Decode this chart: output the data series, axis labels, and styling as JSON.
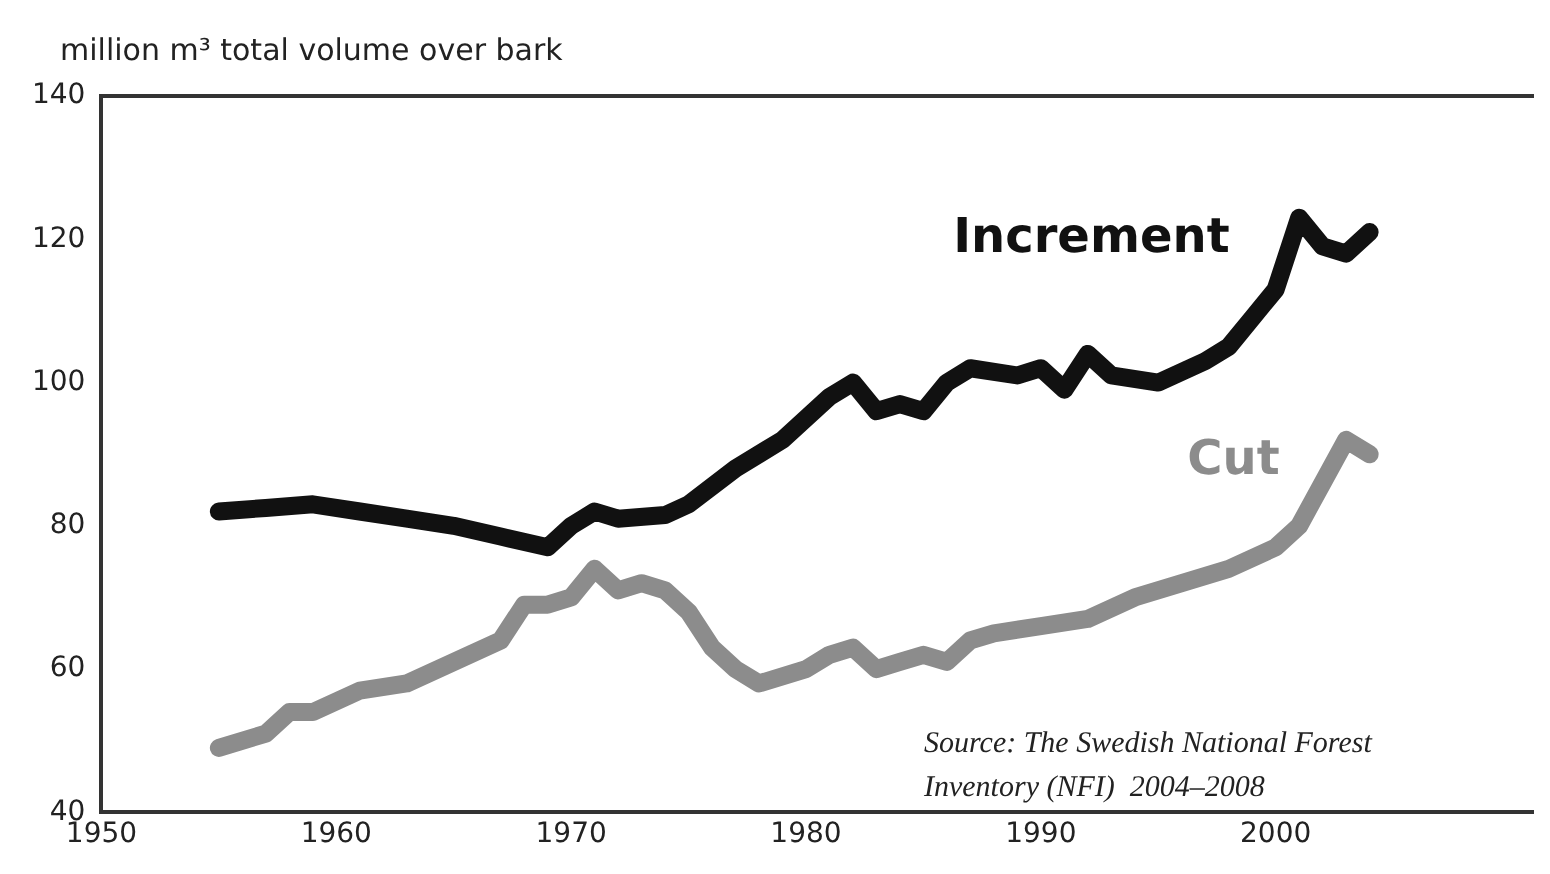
{
  "chart_data": {
    "type": "line",
    "ylabel": "million m³ total volume over bark",
    "xlim": [
      1950,
      2011
    ],
    "xticks": [
      1950,
      1960,
      1970,
      1980,
      1990,
      2000
    ],
    "ylim": [
      40,
      140
    ],
    "yticks": [
      40,
      60,
      80,
      100,
      120,
      140
    ],
    "grid": false,
    "legend": false,
    "marker": "none",
    "line_style": "solid",
    "annotations": [
      "Source: The Swedish National Forest Inventory (NFI)  2004–2008"
    ],
    "series": [
      {
        "name": "Increment",
        "color": "#111111",
        "x": [
          1955,
          1957,
          1959,
          1961,
          1963,
          1965,
          1967,
          1969,
          1970,
          1971,
          1972,
          1974,
          1975,
          1977,
          1979,
          1981,
          1982,
          1983,
          1984,
          1985,
          1986,
          1987,
          1989,
          1990,
          1991,
          1992,
          1993,
          1995,
          1997,
          1998,
          1999,
          2000,
          2001,
          2002,
          2003,
          2004
        ],
        "values": [
          82,
          82.5,
          83,
          82,
          81,
          80,
          78.5,
          77,
          80,
          82,
          81,
          81.5,
          83,
          88,
          92,
          98,
          100,
          96,
          97,
          96,
          100,
          102,
          101,
          102,
          99,
          104,
          101,
          100,
          103,
          105,
          109,
          113,
          123,
          119,
          118,
          121
        ]
      },
      {
        "name": "Cut",
        "color": "#8c8c8c",
        "x": [
          1955,
          1957,
          1958,
          1959,
          1961,
          1963,
          1965,
          1967,
          1968,
          1969,
          1970,
          1971,
          1972,
          1973,
          1974,
          1975,
          1976,
          1977,
          1978,
          1980,
          1981,
          1982,
          1983,
          1984,
          1985,
          1986,
          1987,
          1988,
          1990,
          1992,
          1994,
          1996,
          1998,
          2000,
          2001,
          2002,
          2003,
          2004
        ],
        "values": [
          49,
          51,
          54,
          54,
          57,
          58,
          61,
          64,
          69,
          69,
          70,
          74,
          71,
          72,
          71,
          68,
          63,
          60,
          58,
          60,
          62,
          63,
          60,
          61,
          62,
          61,
          64,
          65,
          66,
          67,
          70,
          72,
          74,
          77,
          80,
          86,
          92,
          90
        ]
      }
    ]
  }
}
